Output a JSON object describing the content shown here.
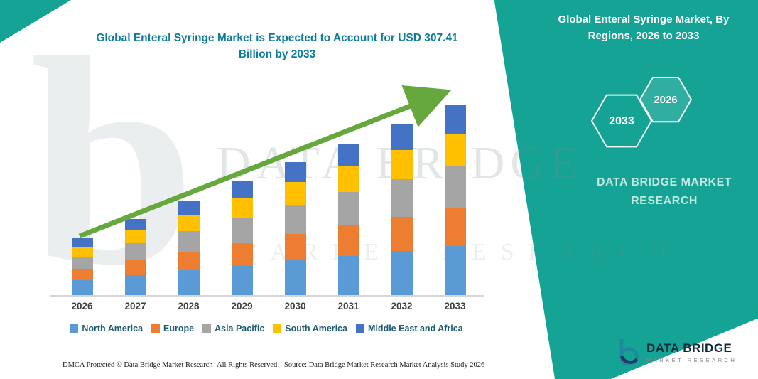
{
  "header": {
    "chart_title": "Global Enteral Syringe Market is Expected to Account for USD 307.41 Billion by 2033"
  },
  "side_panel": {
    "title": "Global Enteral Syringe Market, By Regions, 2026 to 2033",
    "hexagon_years": [
      "2033",
      "2026"
    ],
    "brand_line1": "DATA BRIDGE MARKET",
    "brand_line2": "RESEARCH",
    "background_color": "#14A394"
  },
  "watermark": {
    "letter": "b",
    "line1": "DATA BRIDGE",
    "line2": "MARKET RESEARCH"
  },
  "chart_data": {
    "type": "bar",
    "stacked": true,
    "title": "Global Enteral Syringe Market is Expected to Account for USD 307.41 Billion by 2033",
    "unit": "USD Billion",
    "categories": [
      "2026",
      "2027",
      "2028",
      "2029",
      "2030",
      "2031",
      "2032",
      "2033"
    ],
    "series": [
      {
        "name": "North America",
        "color": "#5B9BD5",
        "values": [
          23.9,
          32.0,
          39.8,
          47.8,
          55.9,
          63.7,
          71.8,
          79.9
        ]
      },
      {
        "name": "Europe",
        "color": "#ED7D31",
        "values": [
          18.4,
          24.6,
          30.6,
          36.8,
          43.0,
          49.0,
          55.2,
          61.5
        ]
      },
      {
        "name": "Asia Pacific",
        "color": "#A5A5A5",
        "values": [
          20.2,
          27.1,
          33.7,
          40.5,
          47.3,
          53.9,
          60.7,
          67.6
        ]
      },
      {
        "name": "South America",
        "color": "#FFC000",
        "values": [
          15.6,
          20.9,
          26.0,
          31.3,
          36.6,
          41.7,
          46.9,
          52.3
        ]
      },
      {
        "name": "Middle East and Africa",
        "color": "#4472C4",
        "values": [
          13.8,
          18.5,
          23.0,
          27.6,
          32.3,
          36.8,
          41.4,
          46.1
        ]
      }
    ],
    "ylim": [
      0,
      320
    ],
    "grid": false,
    "legend_position": "bottom",
    "annotations": [
      "upward growth trend arrow"
    ],
    "final_year_total": "307.41"
  },
  "footer": {
    "dmca": "DMCA Protected © Data Bridge Market Research-  All Rights Reserved.",
    "source": "Source: Data Bridge Market Research  Market Analysis Study 2026",
    "logo_title": "DATA BRIDGE",
    "logo_subtitle": "MARKET RESEARCH"
  }
}
